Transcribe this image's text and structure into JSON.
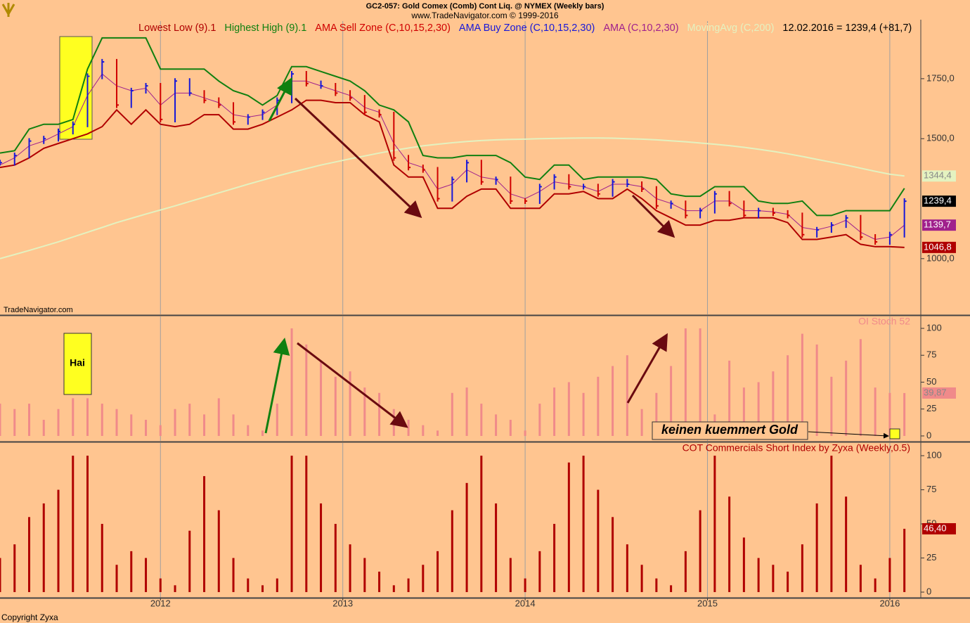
{
  "header": {
    "line1": "GC2-057:  Gold Comex (Comb) Cont Liq. @ NYMEX  (Weekly bars)",
    "line2": "www.TradeNavigator.com © 1999-2016"
  },
  "footer": "Copyright Zyxa",
  "chart_data": [
    {
      "type": "stock",
      "watermark": "TradeNavigator.com",
      "quote": "12.02.2016 = 1239,4 (+81,7)",
      "x": [
        2011.12,
        2011.2,
        2011.28,
        2011.36,
        2011.44,
        2011.52,
        2011.6,
        2011.68,
        2011.76,
        2011.84,
        2011.92,
        2012,
        2012.08,
        2012.16,
        2012.24,
        2012.32,
        2012.4,
        2012.48,
        2012.56,
        2012.64,
        2012.72,
        2012.8,
        2012.88,
        2012.96,
        2013.04,
        2013.12,
        2013.2,
        2013.28,
        2013.36,
        2013.44,
        2013.52,
        2013.6,
        2013.68,
        2013.76,
        2013.84,
        2013.92,
        2014,
        2014.08,
        2014.16,
        2014.24,
        2014.32,
        2014.4,
        2014.48,
        2014.56,
        2014.64,
        2014.72,
        2014.8,
        2014.88,
        2014.96,
        2015.04,
        2015.12,
        2015.2,
        2015.28,
        2015.36,
        2015.44,
        2015.52,
        2015.6,
        2015.68,
        2015.76,
        2015.84,
        2015.92,
        2016,
        2016.08
      ],
      "xlim": [
        2011.12,
        2016.17
      ],
      "ylim": [
        768,
        1990
      ],
      "yticks": [
        {
          "value": 1000,
          "label": "1000,0"
        },
        {
          "value": 1500,
          "label": "1500,0"
        },
        {
          "value": 1750,
          "label": "1750,0"
        }
      ],
      "grid": true,
      "price": {
        "sell_name": "AMA Sell Zone (C,10,15,2,30)",
        "sell_color": "#d00000",
        "buy_name": "AMA Buy Zone (C,10,15,2,30)",
        "buy_color": "#1818d8",
        "values": [
          1400,
          1430,
          1490,
          1500,
          1530,
          1560,
          1760,
          1820,
          1640,
          1700,
          1720,
          1580,
          1740,
          1690,
          1660,
          1640,
          1570,
          1590,
          1610,
          1660,
          1770,
          1730,
          1720,
          1690,
          1670,
          1610,
          1600,
          1420,
          1380,
          1370,
          1250,
          1330,
          1400,
          1320,
          1330,
          1240,
          1240,
          1300,
          1340,
          1300,
          1300,
          1270,
          1320,
          1310,
          1290,
          1220,
          1230,
          1180,
          1200,
          1270,
          1230,
          1180,
          1200,
          1190,
          1180,
          1100,
          1120,
          1140,
          1170,
          1090,
          1070,
          1100,
          1239.4
        ],
        "value_labels": [
          null,
          null,
          null,
          null,
          null,
          null,
          null,
          null,
          null,
          null,
          null,
          null,
          null,
          null,
          null,
          null,
          null,
          null,
          null,
          null,
          null,
          null,
          null,
          null,
          null,
          null,
          null,
          null,
          null,
          null,
          null,
          null,
          null,
          null,
          null,
          null,
          null,
          null,
          null,
          null,
          null,
          null,
          null,
          null,
          null,
          null,
          null,
          null,
          null,
          null,
          null,
          null,
          null,
          null,
          null,
          null,
          null,
          null,
          null,
          null,
          null,
          null,
          "1239,4"
        ],
        "label_color": "#000000"
      },
      "series": [
        {
          "name": "Lowest Low (9).1",
          "color": "#b00000",
          "values": [
            1380,
            1390,
            1420,
            1460,
            1480,
            1500,
            1520,
            1550,
            1620,
            1560,
            1620,
            1560,
            1550,
            1560,
            1600,
            1600,
            1540,
            1540,
            1560,
            1590,
            1620,
            1660,
            1660,
            1650,
            1650,
            1600,
            1570,
            1390,
            1340,
            1340,
            1210,
            1210,
            1260,
            1290,
            1290,
            1210,
            1210,
            1210,
            1270,
            1270,
            1280,
            1250,
            1250,
            1290,
            1250,
            1200,
            1170,
            1140,
            1140,
            1160,
            1160,
            1170,
            1170,
            1170,
            1150,
            1080,
            1080,
            1090,
            1100,
            1060,
            1050,
            1050,
            1046.8
          ],
          "value_labels": [
            null,
            null,
            null,
            null,
            null,
            null,
            null,
            null,
            null,
            null,
            null,
            null,
            null,
            null,
            null,
            null,
            null,
            null,
            null,
            null,
            null,
            null,
            null,
            null,
            null,
            null,
            null,
            null,
            null,
            null,
            null,
            null,
            null,
            null,
            null,
            null,
            null,
            null,
            null,
            null,
            null,
            null,
            null,
            null,
            null,
            null,
            null,
            null,
            null,
            null,
            null,
            null,
            null,
            null,
            null,
            null,
            null,
            null,
            null,
            null,
            null,
            null,
            "1046,8"
          ]
        },
        {
          "name": "Highest High (9).1",
          "color": "#108010",
          "values": [
            1440,
            1450,
            1540,
            1560,
            1560,
            1580,
            1790,
            1920,
            1920,
            1920,
            1920,
            1790,
            1790,
            1790,
            1790,
            1740,
            1700,
            1680,
            1640,
            1680,
            1800,
            1800,
            1780,
            1760,
            1740,
            1700,
            1640,
            1620,
            1570,
            1430,
            1420,
            1420,
            1430,
            1430,
            1430,
            1400,
            1340,
            1330,
            1390,
            1390,
            1330,
            1340,
            1340,
            1340,
            1340,
            1330,
            1270,
            1260,
            1260,
            1300,
            1300,
            1300,
            1240,
            1230,
            1230,
            1240,
            1180,
            1180,
            1200,
            1200,
            1200,
            1200,
            1293
          ]
        },
        {
          "name": "AMA (C,10,2,30)",
          "color": "#a0208c",
          "values": [
            1390,
            1420,
            1470,
            1490,
            1520,
            1550,
            1680,
            1770,
            1720,
            1700,
            1710,
            1640,
            1690,
            1690,
            1670,
            1650,
            1600,
            1590,
            1600,
            1640,
            1740,
            1740,
            1720,
            1700,
            1680,
            1630,
            1610,
            1480,
            1400,
            1380,
            1290,
            1310,
            1370,
            1340,
            1330,
            1270,
            1250,
            1280,
            1320,
            1310,
            1300,
            1280,
            1310,
            1310,
            1300,
            1250,
            1230,
            1200,
            1200,
            1240,
            1240,
            1200,
            1200,
            1195,
            1185,
            1130,
            1120,
            1135,
            1160,
            1110,
            1080,
            1090,
            1139.7
          ],
          "value_labels": [
            null,
            null,
            null,
            null,
            null,
            null,
            null,
            null,
            null,
            null,
            null,
            null,
            null,
            null,
            null,
            null,
            null,
            null,
            null,
            null,
            null,
            null,
            null,
            null,
            null,
            null,
            null,
            null,
            null,
            null,
            null,
            null,
            null,
            null,
            null,
            null,
            null,
            null,
            null,
            null,
            null,
            null,
            null,
            null,
            null,
            null,
            null,
            null,
            null,
            null,
            null,
            null,
            null,
            null,
            null,
            null,
            null,
            null,
            null,
            null,
            null,
            null,
            "1139,7"
          ]
        },
        {
          "name": "MovingAvg (C,200)",
          "color": "#e4f2c0",
          "values": [
            1000,
            1017,
            1034,
            1052,
            1070,
            1090,
            1110,
            1130,
            1150,
            1168,
            1186,
            1203,
            1220,
            1238,
            1256,
            1274,
            1292,
            1310,
            1327,
            1344,
            1360,
            1375,
            1390,
            1403,
            1416,
            1428,
            1440,
            1451,
            1461,
            1470,
            1477,
            1483,
            1488,
            1492,
            1495,
            1497,
            1498,
            1500,
            1501,
            1502,
            1503,
            1503,
            1502,
            1500,
            1498,
            1495,
            1491,
            1487,
            1482,
            1477,
            1471,
            1464,
            1456,
            1447,
            1437,
            1426,
            1414,
            1402,
            1390,
            1377,
            1364,
            1352,
            1344.4
          ],
          "value_labels": [
            null,
            null,
            null,
            null,
            null,
            null,
            null,
            null,
            null,
            null,
            null,
            null,
            null,
            null,
            null,
            null,
            null,
            null,
            null,
            null,
            null,
            null,
            null,
            null,
            null,
            null,
            null,
            null,
            null,
            null,
            null,
            null,
            null,
            null,
            null,
            null,
            null,
            null,
            null,
            null,
            null,
            null,
            null,
            null,
            null,
            null,
            null,
            null,
            null,
            null,
            null,
            null,
            null,
            null,
            null,
            null,
            null,
            null,
            null,
            null,
            null,
            null,
            "1344,4"
          ]
        }
      ]
    },
    {
      "type": "bar",
      "title": "OI Stoch 52",
      "color": "#f08a8a",
      "annotations": [
        "Hai",
        "keinen kuemmert Gold"
      ],
      "x": [
        2011.12,
        2011.2,
        2011.28,
        2011.36,
        2011.44,
        2011.52,
        2011.6,
        2011.68,
        2011.76,
        2011.84,
        2011.92,
        2012,
        2012.08,
        2012.16,
        2012.24,
        2012.32,
        2012.4,
        2012.48,
        2012.56,
        2012.64,
        2012.72,
        2012.8,
        2012.88,
        2012.96,
        2013.04,
        2013.12,
        2013.2,
        2013.28,
        2013.36,
        2013.44,
        2013.52,
        2013.6,
        2013.68,
        2013.76,
        2013.84,
        2013.92,
        2014,
        2014.08,
        2014.16,
        2014.24,
        2014.32,
        2014.4,
        2014.48,
        2014.56,
        2014.64,
        2014.72,
        2014.8,
        2014.88,
        2014.96,
        2015.04,
        2015.12,
        2015.2,
        2015.28,
        2015.36,
        2015.44,
        2015.52,
        2015.6,
        2015.68,
        2015.76,
        2015.84,
        2015.92,
        2016,
        2016.08
      ],
      "values": [
        30,
        25,
        30,
        15,
        25,
        35,
        35,
        30,
        25,
        20,
        15,
        10,
        25,
        30,
        20,
        35,
        20,
        10,
        5,
        30,
        100,
        85,
        70,
        55,
        60,
        45,
        40,
        25,
        15,
        10,
        5,
        40,
        45,
        30,
        20,
        15,
        5,
        30,
        45,
        50,
        40,
        55,
        65,
        75,
        25,
        40,
        65,
        100,
        100,
        20,
        70,
        45,
        50,
        60,
        75,
        95,
        85,
        55,
        70,
        90,
        45,
        40,
        39.87
      ],
      "value_labels": [
        null,
        null,
        null,
        null,
        null,
        null,
        null,
        null,
        null,
        null,
        null,
        null,
        null,
        null,
        null,
        null,
        null,
        null,
        null,
        null,
        null,
        null,
        null,
        null,
        null,
        null,
        null,
        null,
        null,
        null,
        null,
        null,
        null,
        null,
        null,
        null,
        null,
        null,
        null,
        null,
        null,
        null,
        null,
        null,
        null,
        null,
        null,
        null,
        null,
        null,
        null,
        null,
        null,
        null,
        null,
        null,
        null,
        null,
        null,
        null,
        null,
        null,
        "39,87"
      ],
      "xlim": [
        2011.12,
        2016.17
      ],
      "ylim": [
        -4.6,
        111.1
      ],
      "yticks": [
        0,
        25,
        50,
        75,
        100
      ],
      "grid": true
    },
    {
      "type": "bar",
      "title": "COT Commercials Short Index by Zyxa (Weekly,0.5)",
      "color": "#b00000",
      "x": [
        2011.12,
        2011.2,
        2011.28,
        2011.36,
        2011.44,
        2011.52,
        2011.6,
        2011.68,
        2011.76,
        2011.84,
        2011.92,
        2012,
        2012.08,
        2012.16,
        2012.24,
        2012.32,
        2012.4,
        2012.48,
        2012.56,
        2012.64,
        2012.72,
        2012.8,
        2012.88,
        2012.96,
        2013.04,
        2013.12,
        2013.2,
        2013.28,
        2013.36,
        2013.44,
        2013.52,
        2013.6,
        2013.68,
        2013.76,
        2013.84,
        2013.92,
        2014,
        2014.08,
        2014.16,
        2014.24,
        2014.32,
        2014.4,
        2014.48,
        2014.56,
        2014.64,
        2014.72,
        2014.8,
        2014.88,
        2014.96,
        2015.04,
        2015.12,
        2015.2,
        2015.28,
        2015.36,
        2015.44,
        2015.52,
        2015.6,
        2015.68,
        2015.76,
        2015.84,
        2015.92,
        2016,
        2016.08
      ],
      "values": [
        25,
        35,
        55,
        65,
        75,
        100,
        100,
        50,
        20,
        30,
        25,
        10,
        5,
        45,
        85,
        60,
        25,
        10,
        5,
        10,
        100,
        100,
        65,
        50,
        35,
        25,
        15,
        5,
        10,
        20,
        30,
        60,
        80,
        100,
        65,
        25,
        10,
        30,
        50,
        95,
        100,
        75,
        55,
        35,
        20,
        10,
        5,
        30,
        60,
        100,
        70,
        40,
        25,
        20,
        15,
        35,
        65,
        100,
        70,
        20,
        10,
        25,
        46.4
      ],
      "value_labels": [
        null,
        null,
        null,
        null,
        null,
        null,
        null,
        null,
        null,
        null,
        null,
        null,
        null,
        null,
        null,
        null,
        null,
        null,
        null,
        null,
        null,
        null,
        null,
        null,
        null,
        null,
        null,
        null,
        null,
        null,
        null,
        null,
        null,
        null,
        null,
        null,
        null,
        null,
        null,
        null,
        null,
        null,
        null,
        null,
        null,
        null,
        null,
        null,
        null,
        null,
        null,
        null,
        null,
        null,
        null,
        null,
        null,
        null,
        null,
        null,
        null,
        null,
        "46,40"
      ],
      "xlim": [
        2011.12,
        2016.17
      ],
      "ylim": [
        -4.1,
        109.3
      ],
      "yticks": [
        0,
        25,
        50,
        75,
        100
      ],
      "xticks": [
        2012,
        2013,
        2014,
        2015,
        2016
      ],
      "grid": true
    }
  ]
}
